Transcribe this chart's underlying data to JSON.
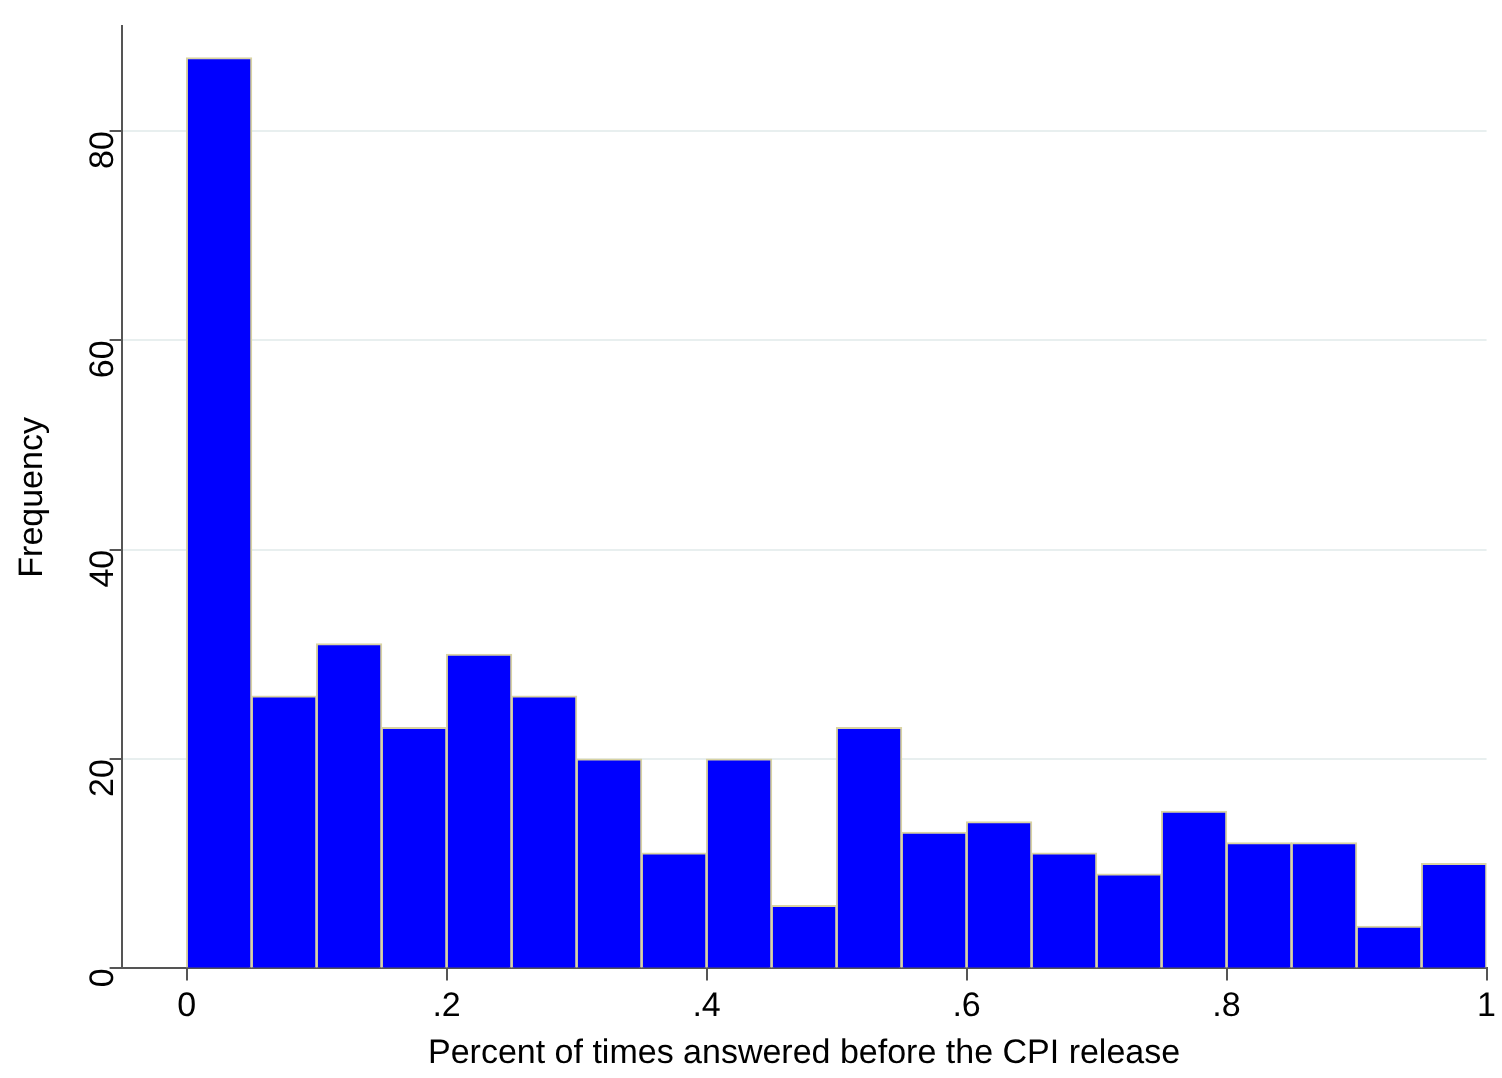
{
  "chart_data": {
    "type": "histogram",
    "xlabel": "Percent of times answered before the CPI release",
    "ylabel": "Frequency",
    "bins": [
      0,
      0.05,
      0.1,
      0.15,
      0.2,
      0.25,
      0.3,
      0.35,
      0.4,
      0.45,
      0.5,
      0.55,
      0.6,
      0.65,
      0.7,
      0.75,
      0.8,
      0.85,
      0.9,
      0.95,
      1
    ],
    "values": [
      87,
      26,
      31,
      23,
      30,
      26,
      20,
      11,
      20,
      6,
      23,
      13,
      14,
      11,
      9,
      15,
      12,
      12,
      4,
      10
    ],
    "color": "#0000ff",
    "xlim": [
      -0.05,
      1
    ],
    "xticks": [
      0,
      {
        "value": 0.2,
        "label": ".2"
      },
      {
        "value": 0.4,
        "label": ".4"
      },
      {
        "value": 0.6,
        "label": ".6"
      },
      {
        "value": 0.8,
        "label": ".8"
      },
      1
    ],
    "ylim": [
      0,
      90
    ],
    "yticks": [
      0,
      20,
      40,
      60,
      80
    ],
    "grid": "y",
    "legend": false
  }
}
